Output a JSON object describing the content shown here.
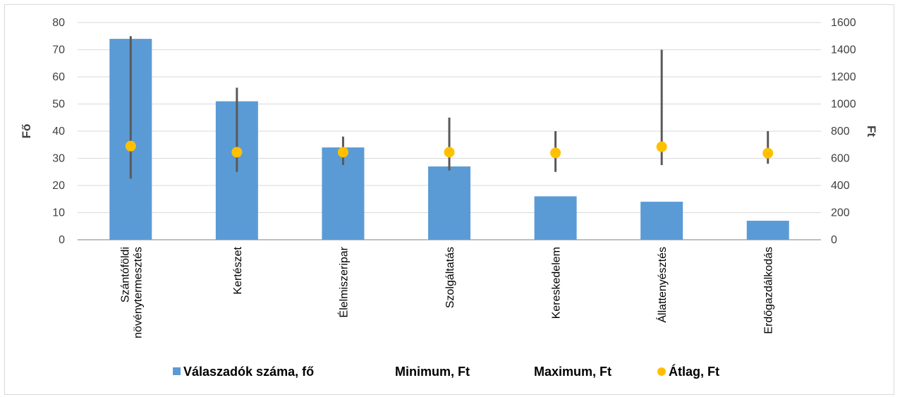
{
  "chart_data": {
    "type": "bar",
    "categories": [
      "Szántóföldi növénytermesztés",
      "Kertészet",
      "Élelmiszeripar",
      "Szolgáltatás",
      "Kereskedelem",
      "Állattenyésztés",
      "Erdőgazdálkodás"
    ],
    "series": [
      {
        "name": "Válaszadók száma, fő",
        "type": "bar",
        "axis": "left",
        "color": "#5b9bd5",
        "values": [
          74,
          51,
          34,
          27,
          16,
          14,
          7
        ]
      },
      {
        "name": "Minimum, Ft",
        "type": "error-bar-low",
        "axis": "right",
        "color": "#595959",
        "values": [
          450,
          500,
          550,
          510,
          500,
          550,
          560
        ]
      },
      {
        "name": "Maximum, Ft",
        "type": "error-bar-high",
        "axis": "right",
        "color": "#595959",
        "values": [
          1500,
          1120,
          760,
          900,
          800,
          1400,
          800
        ]
      },
      {
        "name": "Átlag, Ft",
        "type": "scatter",
        "axis": "right",
        "color": "#ffc000",
        "values": [
          690,
          645,
          645,
          645,
          640,
          685,
          638
        ]
      }
    ],
    "ylabel": "Fő",
    "y2label": "Ft",
    "ylim": [
      0,
      80
    ],
    "y2lim": [
      0,
      1600
    ],
    "yticks": [
      "0",
      "10",
      "20",
      "30",
      "40",
      "50",
      "60",
      "70",
      "80"
    ],
    "y2ticks": [
      "0",
      "200",
      "400",
      "600",
      "800",
      "1000",
      "1200",
      "1400",
      "1600"
    ],
    "grid": true,
    "legend_position": "bottom"
  }
}
